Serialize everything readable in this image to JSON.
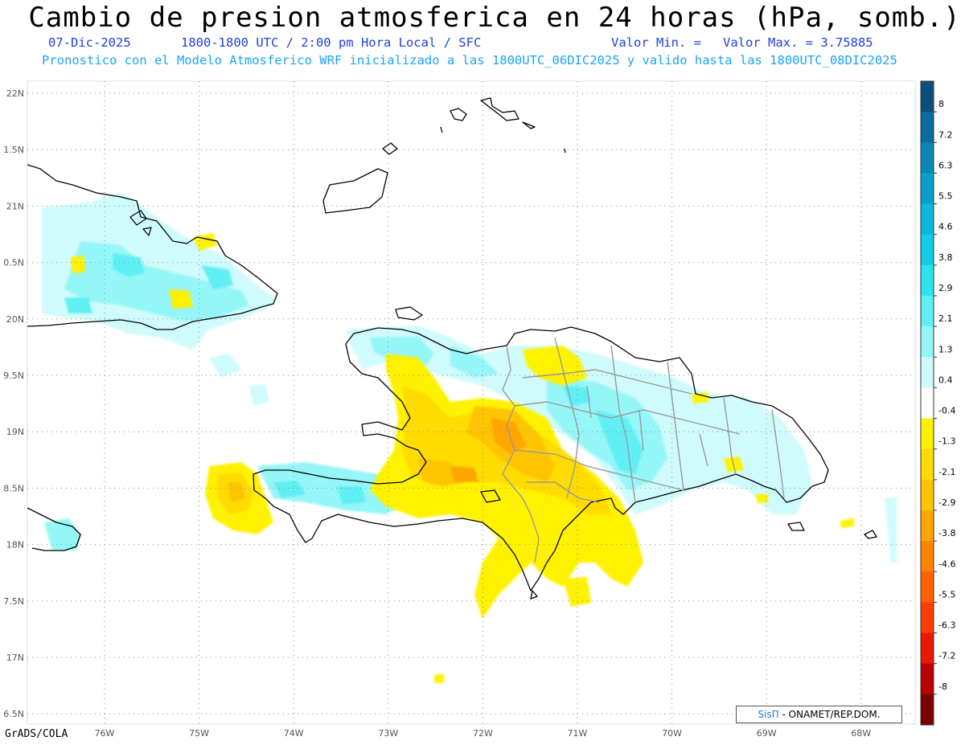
{
  "title": "Cambio de presion atmosferica en 24 horas (hPa, somb.)",
  "subtitle": {
    "date": "07-Dic-2025",
    "period": "1800-1800 UTC / 2:00 pm Hora Local / SFC",
    "min_label": "Valor Min. =",
    "max_label": "Valor Max. = 3.75885"
  },
  "description": "Pronostico con el Modelo Atmosferico WRF inicializado a las 1800UTC_06DIC2025 y valido hasta las  1800UTC_08DIC2025",
  "credit": "GrADS/COLA",
  "badge": {
    "brand": "SisΠ",
    "text": "- ONAMET/REP.DOM."
  },
  "map": {
    "lat_labels": [
      "22N",
      "1.5N",
      "21N",
      "0.5N",
      "20N",
      "9.5N",
      "19N",
      "8.5N",
      "18N",
      "7.5N",
      "17N",
      "6.5N"
    ],
    "lon_labels": [
      "76W",
      "75W",
      "74W",
      "73W",
      "72W",
      "71W",
      "70W",
      "69W",
      "68W"
    ],
    "lon_range": [
      -76.8,
      -67.6
    ],
    "lat_range": [
      16.5,
      22.1
    ]
  },
  "colorbar": {
    "labels": [
      "8",
      "7.2",
      "6.3",
      "5.5",
      "4.6",
      "3.8",
      "2.9",
      "2.1",
      "1.3",
      "0.4",
      "-0.4",
      "-1.3",
      "-2.1",
      "-2.9",
      "-3.8",
      "-4.6",
      "-5.5",
      "-6.3",
      "-7.2",
      "-8"
    ],
    "colors": [
      "#0b4f7a",
      "#0a6c9a",
      "#0a86b4",
      "#0a9fcc",
      "#0bb7dc",
      "#12cde8",
      "#2ee3f0",
      "#5feff5",
      "#95f6f8",
      "#cffbfc",
      "#ffffff",
      "#fff200",
      "#ffdc00",
      "#ffc400",
      "#ffa600",
      "#ff8500",
      "#ff6000",
      "#ff3d00",
      "#e81a00",
      "#b80000",
      "#7a0000"
    ]
  }
}
